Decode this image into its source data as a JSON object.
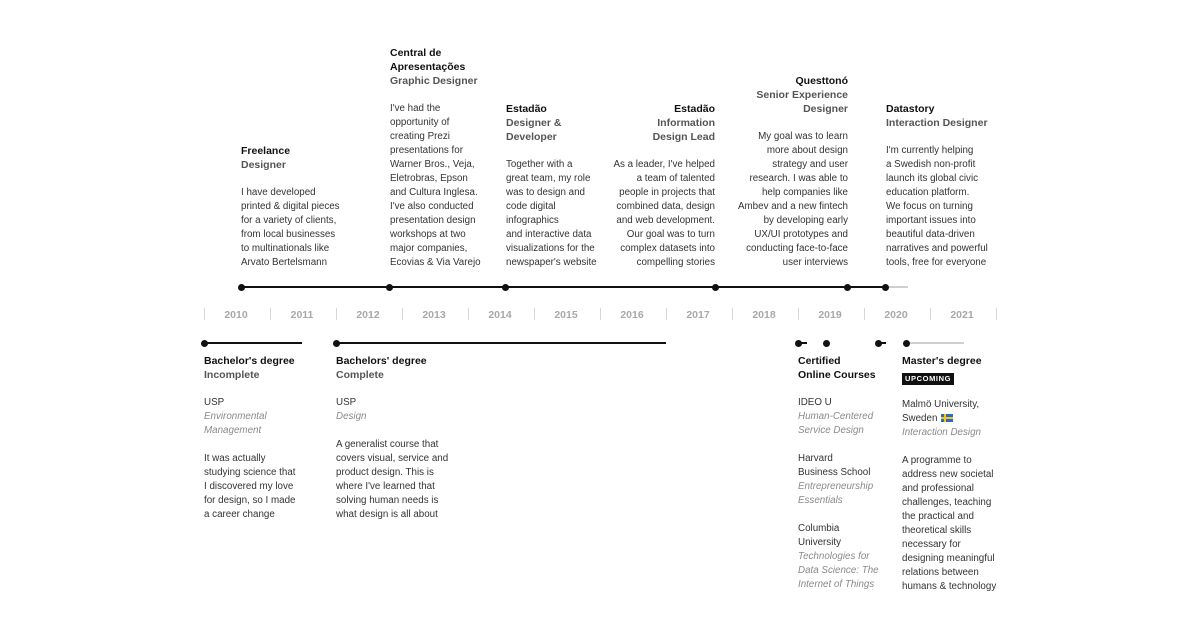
{
  "years": [
    "2010",
    "2011",
    "2012",
    "2013",
    "2014",
    "2015",
    "2016",
    "2017",
    "2018",
    "2019",
    "2020",
    "2021"
  ],
  "work": [
    {
      "org": "Freelance",
      "role": [
        "Designer"
      ],
      "desc": [
        "I have developed",
        "printed & digital pieces",
        "for a variety of clients,",
        "from local businesses",
        "to multinationals like",
        "Arvato Bertelsmann"
      ]
    },
    {
      "org": [
        "Central de",
        "Apresentações"
      ],
      "role": [
        "Graphic Designer"
      ],
      "desc": [
        "I've had the",
        "opportunity of",
        "creating Prezi",
        "presentations for",
        "Warner Bros., Veja,",
        "Eletrobras, Epson",
        "and Cultura Inglesa.",
        "I've also conducted",
        "presentation design",
        "workshops at two",
        "major companies,",
        "Ecovias & Via Varejo"
      ]
    },
    {
      "org": "Estadão",
      "role": [
        "Designer &",
        "Developer"
      ],
      "desc": [
        "Together with a",
        "great team, my role",
        "was to design and",
        "code digital",
        "infographics",
        "and interactive data",
        "visualizations for the",
        "newspaper's website"
      ]
    },
    {
      "org": "Estadão",
      "role": [
        "Information",
        "Design Lead"
      ],
      "desc": [
        "As a leader, I've helped",
        "a team of talented",
        "people in projects that",
        "combined data, design",
        "and web development.",
        "Our goal was to turn",
        "complex datasets into",
        "compelling stories"
      ]
    },
    {
      "org": "Questtonó",
      "role": [
        "Senior Experience",
        "Designer"
      ],
      "desc": [
        "My goal was to learn",
        "more about design",
        "strategy and user",
        "research. I was able to",
        "help companies like",
        "Ambev and a new fintech",
        "by developing early",
        "UX/UI prototypes and",
        "conducting face-to-face",
        "user interviews"
      ]
    },
    {
      "org": "Datastory",
      "role": [
        "Interaction Designer"
      ],
      "desc": [
        "I'm currently helping",
        "a Swedish non-profit",
        "launch its global civic",
        "education platform.",
        "We focus on turning",
        "important issues into",
        "beautiful data-driven",
        "narratives and powerful",
        "tools, free for everyone"
      ]
    }
  ],
  "edu": [
    {
      "title": "Bachelor's degree",
      "status": "Incomplete",
      "school": "USP",
      "field": [
        "Environmental",
        "Management"
      ],
      "desc": [
        "It was actually",
        "studying science that",
        "I discovered my love",
        "for design, so I made",
        "a career change"
      ]
    },
    {
      "title": "Bachelors' degree",
      "status": "Complete",
      "school": "USP",
      "field": [
        "Design"
      ],
      "desc": [
        "A generalist course that",
        "covers visual, service and",
        "product design. This is",
        "where I've learned that",
        "solving human needs is",
        "what design is all about"
      ]
    },
    {
      "title": [
        "Certified",
        "Online Courses"
      ],
      "courses": [
        {
          "school": [
            "IDEO U"
          ],
          "field": [
            "Human-Centered",
            "Service Design"
          ]
        },
        {
          "school": [
            "Harvard",
            "Business School"
          ],
          "field": [
            "Entrepreneurship",
            "Essentials"
          ]
        },
        {
          "school": [
            "Columbia",
            "University"
          ],
          "field": [
            "Technologies for",
            "Data Science: The",
            "Internet of Things"
          ]
        }
      ]
    },
    {
      "title": "Master's degree",
      "badge": "UPCOMING",
      "school": [
        "Malmö University,",
        "Sweden"
      ],
      "field": [
        "Interaction Design"
      ],
      "desc": [
        "A programme to",
        "address new societal",
        "and professional",
        "challenges, teaching",
        "the practical and",
        "theoretical skills",
        "necessary for",
        "designing meaningful",
        "relations between",
        "humans & technology"
      ]
    }
  ],
  "icons": {
    "flag": "sweden-flag-icon"
  },
  "colors": {
    "text": "#1f1f1f",
    "muted": "#8a8a8a",
    "year": "#a9a9a9",
    "line": "#111111",
    "badge": "#111111"
  }
}
